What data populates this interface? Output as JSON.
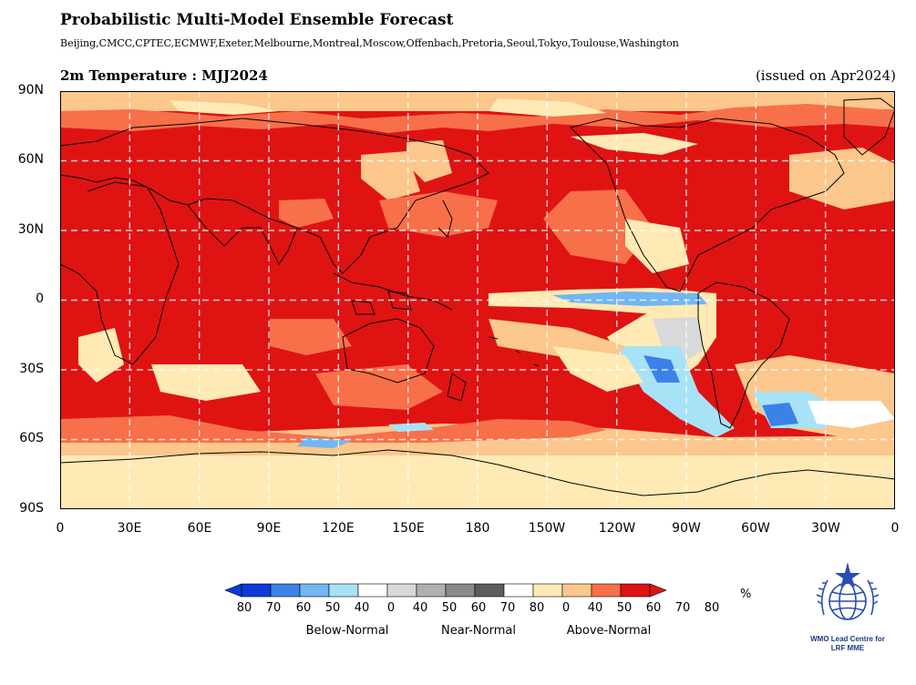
{
  "header": {
    "title": "Probabilistic Multi-Model Ensemble Forecast",
    "centres": "Beijing,CMCC,CPTEC,ECMWF,Exeter,Melbourne,Montreal,Moscow,Offenbach,Pretoria,Seoul,Tokyo,Toulouse,Washington"
  },
  "map": {
    "title": "2m Temperature : MJJ2024",
    "issued": "(issued on Apr2024)",
    "lat_labels": [
      "90N",
      "60N",
      "30N",
      "0",
      "30S",
      "60S",
      "90S"
    ],
    "lon_labels": [
      "0",
      "30E",
      "60E",
      "90E",
      "120E",
      "150E",
      "180",
      "150W",
      "120W",
      "90W",
      "60W",
      "30W",
      "0"
    ],
    "projection": "plate carree, 0 to 360 longitude",
    "gridlines": "dashed white"
  },
  "legend": {
    "unit": "%",
    "ticks": [
      "80",
      "70",
      "60",
      "50",
      "40",
      "0",
      "40",
      "50",
      "60",
      "70",
      "80",
      "0",
      "40",
      "50",
      "60",
      "70",
      "80"
    ],
    "categories": [
      "Below-Normal",
      "Near-Normal",
      "Above-Normal"
    ],
    "colors": [
      "#0a3bd9",
      "#3b82e8",
      "#72b6f2",
      "#a8e2f7",
      "#ffffff",
      "#d9d9d9",
      "#b0b0b0",
      "#8a8a8a",
      "#5c5c5c",
      "#ffffff",
      "#ffeab5",
      "#fcc78c",
      "#f7704a",
      "#e01313"
    ]
  },
  "logo": {
    "name": "wmo-emblem-icon",
    "line1": "WMO Lead Centre for",
    "line2": "LRF MME"
  }
}
